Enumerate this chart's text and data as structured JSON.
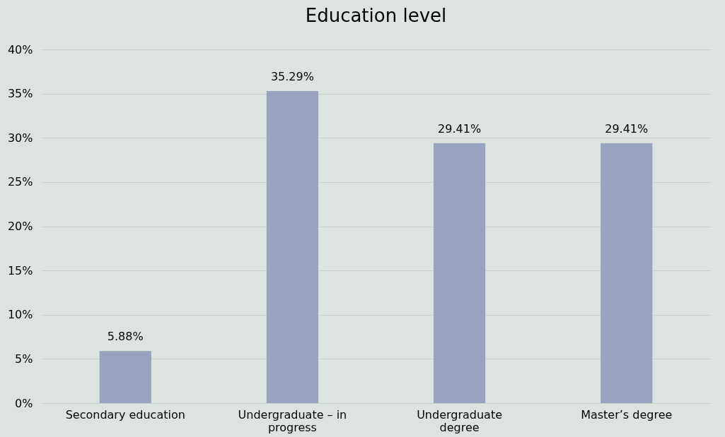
{
  "chart_data": {
    "type": "bar",
    "title": "Education level",
    "categories": [
      "Secondary education",
      "Undergraduate – in progress",
      "Undergraduate degree",
      "Master’s degree"
    ],
    "values": [
      5.88,
      35.29,
      29.41,
      29.41
    ],
    "value_labels": [
      "5.88%",
      "35.29%",
      "29.41%",
      "29.41%"
    ],
    "color": "#97a3bf",
    "ylim": [
      0,
      40
    ],
    "yticks": [
      {
        "value": 0,
        "label": "0%"
      },
      {
        "value": 5,
        "label": "5%"
      },
      {
        "value": 10,
        "label": "10%"
      },
      {
        "value": 15,
        "label": "15%"
      },
      {
        "value": 20,
        "label": "20%"
      },
      {
        "value": 25,
        "label": "25%"
      },
      {
        "value": 30,
        "label": "30%"
      },
      {
        "value": 35,
        "label": "35%"
      },
      {
        "value": 40,
        "label": "40%"
      }
    ],
    "grid": "y"
  }
}
